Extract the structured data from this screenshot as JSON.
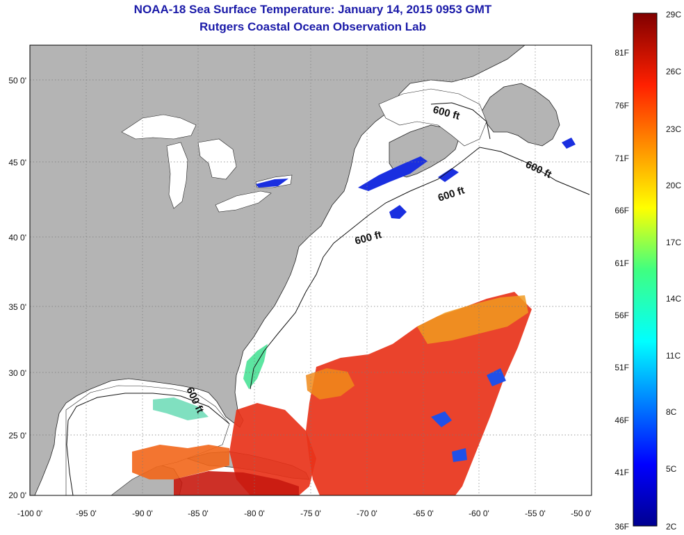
{
  "title": "NOAA-18 Sea Surface Temperature:  January 14, 2015 0953 GMT",
  "subtitle": "Rutgers Coastal Ocean Observation Lab",
  "lat_labels": [
    "50 0'",
    "45 0'",
    "40 0'",
    "35 0'",
    "30 0'",
    "25 0'",
    "20 0'"
  ],
  "lon_labels": [
    "-100 0'",
    "-95 0'",
    "-90 0'",
    "-85 0'",
    "-80 0'",
    "-75 0'",
    "-70 0'",
    "-65 0'",
    "-60 0'",
    "-55 0'",
    "-50 0'"
  ],
  "contour_labels": [
    "600 ft",
    "600 ft",
    "600 ft",
    "600 ft",
    "600 ft"
  ],
  "colorbar": {
    "f_labels": [
      "81F",
      "76F",
      "71F",
      "66F",
      "61F",
      "56F",
      "51F",
      "46F",
      "41F",
      "36F"
    ],
    "c_labels": [
      "29C",
      "26C",
      "23C",
      "20C",
      "17C",
      "14C",
      "11C",
      "8C",
      "5C",
      "2C"
    ]
  },
  "colors": {
    "land": "#b4b4b4",
    "ocean_no_data": "#ffffff",
    "title": "#1a1aa8",
    "cold": "#1a2fe0",
    "warm": "#e8331a"
  }
}
